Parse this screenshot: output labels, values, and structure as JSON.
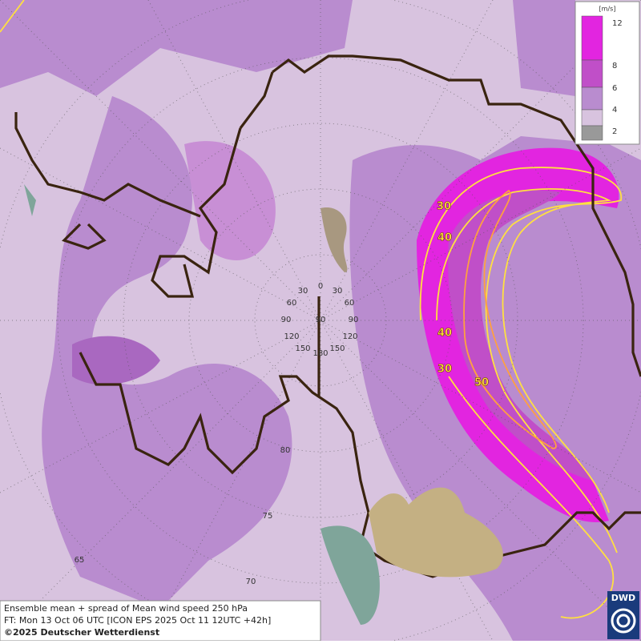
{
  "legend": {
    "unit": "[m/s]",
    "levels": [
      "12",
      "8",
      "6",
      "4",
      "2"
    ]
  },
  "caption": {
    "line1": "Ensemble mean + spread of Mean wind speed 250 hPa",
    "line2": "FT: Mon 13 Oct 06 UTC [ICON EPS 2025 Oct 11 12UTC +42h]",
    "line3": "©2025 Deutscher Wetterdienst"
  },
  "logo": "DWD",
  "contour_labels": [
    "30",
    "40",
    "40",
    "30",
    "50"
  ],
  "longitude_labels": [
    "0",
    "30",
    "30",
    "60",
    "60",
    "90",
    "90",
    "90",
    "120",
    "120",
    "150",
    "150",
    "180"
  ],
  "latitude_labels": [
    "80",
    "75",
    "70",
    "65"
  ]
}
